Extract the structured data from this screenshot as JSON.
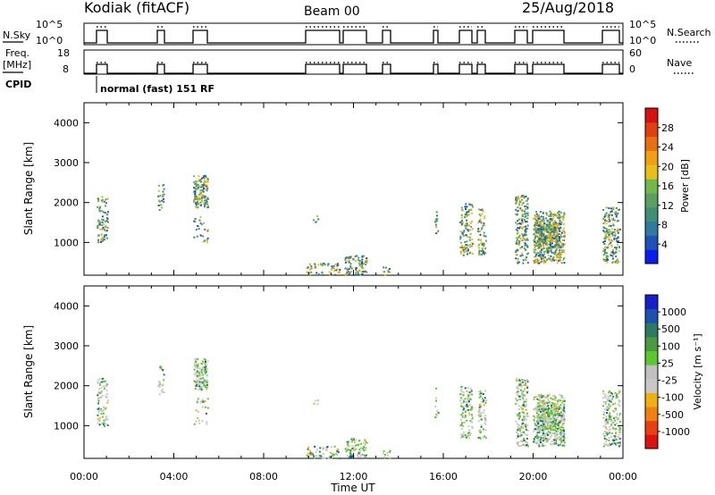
{
  "header": {
    "station": "Kodiak (fitACF)",
    "beam": "Beam 00",
    "date": "25/Aug/2018"
  },
  "strip_labels": {
    "nsky": "N.Sky",
    "freq_line1": "Freq.",
    "freq_line2": "[MHz]",
    "cpid": "CPID",
    "nsearch": "N.Search",
    "nave": "Nave",
    "cpid_text": "normal (fast)  151  RF"
  },
  "strip_ticks": {
    "nsky_top": "10^5",
    "nsky_bottom": "10^0",
    "freq_top": "18",
    "freq_bottom": "8",
    "nave_top": "60",
    "nave_bottom": "0"
  },
  "chart_data": [
    {
      "type": "heatmap",
      "name": "power",
      "ylabel": "Slant Range [km]",
      "y_ticks": [
        "1000",
        "2000",
        "3000",
        "4000"
      ],
      "colorbar_label": "Power [dB]",
      "colorbar_ticks": [
        "4",
        "8",
        "12",
        "16",
        "20",
        "24",
        "28"
      ],
      "colorbar_colors": [
        "#0b1cf0",
        "#1d52b8",
        "#2f7aa0",
        "#3f8f72",
        "#5aa060",
        "#72b94a",
        "#e8c018",
        "#f0a010",
        "#e87010",
        "#e04010",
        "#d81010"
      ]
    },
    {
      "type": "heatmap",
      "name": "velocity",
      "ylabel": "Slant Range [km]",
      "y_ticks": [
        "1000",
        "2000",
        "3000",
        "4000"
      ],
      "colorbar_label": "Velocity [m s⁻¹]",
      "colorbar_ticks": [
        "1000",
        "500",
        "100",
        "25",
        "-25",
        "-100",
        "-500",
        "-1000"
      ],
      "colorbar_colors": [
        "#1520c8",
        "#1e50b0",
        "#2c7a60",
        "#4a9a40",
        "#5ac830",
        "#c0c0c0",
        "#c8c8c8",
        "#f0b010",
        "#f08010",
        "#e84010",
        "#e01010"
      ]
    }
  ],
  "x_axis": {
    "ticks": [
      "00:00",
      "04:00",
      "08:00",
      "12:00",
      "16:00",
      "20:00",
      "00:00"
    ],
    "label": "Time UT"
  }
}
